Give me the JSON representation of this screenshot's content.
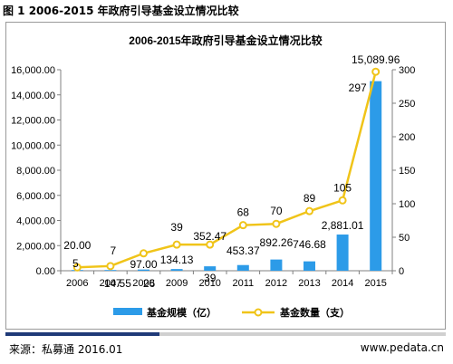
{
  "figure_title": "图 1 2006-2015 年政府引导基金设立情况比较",
  "footer": {
    "source": "来源：私募通 2016.01",
    "website": "www.pedata.cn"
  },
  "colors": {
    "bar": "#2c9be8",
    "line": "#f0c419",
    "marker_fill": "#ffffff",
    "footer_accent": "#1f3a78"
  },
  "chart_data": {
    "type": "bar",
    "title": "2006-2015年政府引导基金设立情况比较",
    "categories": [
      "2006",
      "2007",
      "2008",
      "2009",
      "2010",
      "2011",
      "2012",
      "2013",
      "2014",
      "2015"
    ],
    "series": [
      {
        "name": "基金规模（亿）",
        "type": "bar",
        "axis": "left",
        "values": [
          20.0,
          14.55,
          97.0,
          134.13,
          352.47,
          453.37,
          892.26,
          746.68,
          2881.01,
          15089.96
        ],
        "labels": [
          "20.00",
          "14.55",
          "97.00",
          "134.13",
          "352.47",
          "453.37",
          "892.26",
          "746.68",
          "2,881.01",
          "15,089.96"
        ]
      },
      {
        "name": "基金数量（支）",
        "type": "line",
        "axis": "right",
        "values": [
          5,
          7,
          26,
          39,
          39,
          68,
          70,
          89,
          105,
          297
        ],
        "labels": [
          "5",
          "7",
          "26",
          "39",
          "39",
          "68",
          "70",
          "89",
          "105",
          "297"
        ]
      }
    ],
    "y_left": {
      "ylim": [
        0,
        16000
      ],
      "ticks": [
        0,
        2000,
        4000,
        6000,
        8000,
        10000,
        12000,
        14000,
        16000
      ],
      "tick_labels": [
        "0.00",
        "2,000.00",
        "4,000.00",
        "6,000.00",
        "8,000.00",
        "10,000.00",
        "12,000.00",
        "14,000.00",
        "16,000.00"
      ]
    },
    "y_right": {
      "ylim": [
        0,
        300
      ],
      "ticks": [
        0,
        50,
        100,
        150,
        200,
        250,
        300
      ],
      "tick_labels": [
        "0",
        "50",
        "100",
        "150",
        "200",
        "250",
        "300"
      ]
    },
    "grid": false,
    "legend_position": "bottom"
  }
}
